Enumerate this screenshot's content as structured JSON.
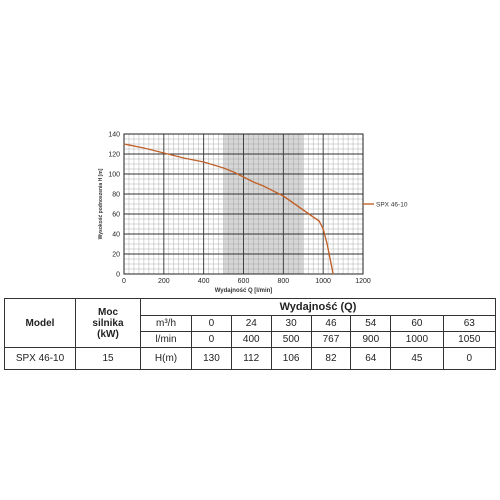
{
  "chart_data": {
    "type": "line",
    "xlabel": "Wydajność Q [l/min]",
    "ylabel": "Wysokość podnoszenia H [m]",
    "xlim": [
      0,
      1200
    ],
    "ylim": [
      0,
      140
    ],
    "x_ticks": [
      "0",
      "200",
      "400",
      "600",
      "800",
      "1000",
      "1200"
    ],
    "y_ticks": [
      "0",
      "20",
      "40",
      "60",
      "80",
      "100",
      "120",
      "140"
    ],
    "grid": true,
    "shaded_band": [
      500,
      900
    ],
    "legend_position": "right",
    "series": [
      {
        "name": "SPX 46-10",
        "color": "#c0622a",
        "x": [
          0,
          100,
          200,
          300,
          400,
          450,
          500,
          550,
          600,
          650,
          700,
          750,
          800,
          850,
          900,
          950,
          980,
          1000,
          1020,
          1040,
          1050
        ],
        "y": [
          130,
          126,
          121,
          116,
          112,
          109,
          106,
          102,
          97,
          92,
          88,
          83,
          78,
          71,
          64,
          57,
          53,
          45,
          30,
          10,
          0
        ]
      }
    ]
  },
  "table": {
    "model_header": "Model",
    "moc_header_line1": "Moc",
    "moc_header_line2": "silnika",
    "moc_header_line3": "(kW)",
    "wydajnosc_header": "Wydajność (Q)",
    "unit_m3h": "m³/h",
    "unit_lmin": "l/min",
    "unit_h": "H(m)",
    "m3h_values": [
      "0",
      "24",
      "30",
      "46",
      "54",
      "60",
      "63"
    ],
    "lmin_values": [
      "0",
      "400",
      "500",
      "767",
      "900",
      "1000",
      "1050"
    ],
    "model_name": "SPX 46-10",
    "moc_value": "15",
    "h_values": [
      "130",
      "112",
      "106",
      "82",
      "64",
      "45",
      "0"
    ]
  }
}
